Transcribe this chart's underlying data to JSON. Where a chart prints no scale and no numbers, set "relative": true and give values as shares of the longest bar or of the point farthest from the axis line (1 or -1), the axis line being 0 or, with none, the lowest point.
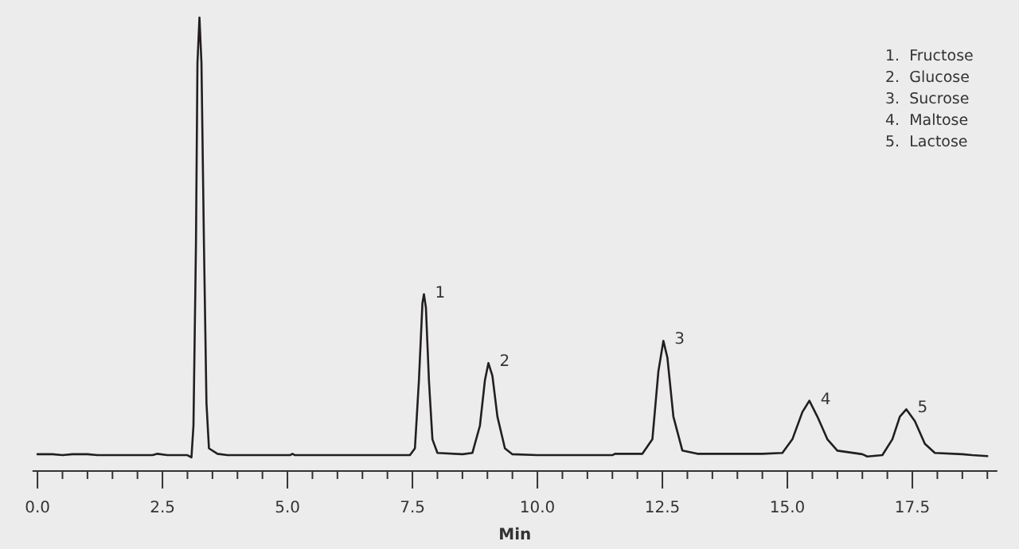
{
  "chart_data": {
    "type": "line",
    "relative": true,
    "xlabel": "Min",
    "xlim": [
      -0.1,
      19.2
    ],
    "xticks": [
      {
        "value": 0,
        "label": "0.0"
      },
      {
        "value": 0.5,
        "label": null
      },
      {
        "value": 1,
        "label": null
      },
      {
        "value": 1.5,
        "label": null
      },
      {
        "value": 2,
        "label": null
      },
      {
        "value": 2.5,
        "label": "2.5"
      },
      {
        "value": 3,
        "label": null
      },
      {
        "value": 3.5,
        "label": null
      },
      {
        "value": 4,
        "label": null
      },
      {
        "value": 4.5,
        "label": null
      },
      {
        "value": 5,
        "label": "5.0"
      },
      {
        "value": 5.5,
        "label": null
      },
      {
        "value": 6,
        "label": null
      },
      {
        "value": 6.5,
        "label": null
      },
      {
        "value": 7,
        "label": null
      },
      {
        "value": 7.5,
        "label": "7.5"
      },
      {
        "value": 8,
        "label": null
      },
      {
        "value": 8.5,
        "label": null
      },
      {
        "value": 9,
        "label": null
      },
      {
        "value": 9.5,
        "label": null
      },
      {
        "value": 10,
        "label": "10.0"
      },
      {
        "value": 10.5,
        "label": null
      },
      {
        "value": 11,
        "label": null
      },
      {
        "value": 11.5,
        "label": null
      },
      {
        "value": 12,
        "label": null
      },
      {
        "value": 12.5,
        "label": "12.5"
      },
      {
        "value": 13,
        "label": null
      },
      {
        "value": 13.5,
        "label": null
      },
      {
        "value": 14,
        "label": null
      },
      {
        "value": 14.5,
        "label": null
      },
      {
        "value": 15,
        "label": "15.0"
      },
      {
        "value": 15.5,
        "label": null
      },
      {
        "value": 16,
        "label": null
      },
      {
        "value": 16.5,
        "label": null
      },
      {
        "value": 17,
        "label": null
      },
      {
        "value": 17.5,
        "label": "17.5"
      },
      {
        "value": 18,
        "label": null
      },
      {
        "value": 18.5,
        "label": null
      },
      {
        "value": 19,
        "label": null
      }
    ],
    "series": [
      {
        "color": "#231f20",
        "x": [
          0,
          0.3,
          0.5,
          0.7,
          1.0,
          1.2,
          2.3,
          2.4,
          2.6,
          3.0,
          3.08,
          3.12,
          3.17,
          3.2,
          3.24,
          3.28,
          3.33,
          3.38,
          3.43,
          3.6,
          3.8,
          5.05,
          5.1,
          5.15,
          7.45,
          7.55,
          7.63,
          7.7,
          7.73,
          7.77,
          7.83,
          7.9,
          8.0,
          8.5,
          8.7,
          8.85,
          8.95,
          9.02,
          9.1,
          9.2,
          9.35,
          9.5,
          10.0,
          11.5,
          11.55,
          12.1,
          12.3,
          12.42,
          12.52,
          12.6,
          12.72,
          12.9,
          13.2,
          14.5,
          14.9,
          15.1,
          15.3,
          15.44,
          15.6,
          15.8,
          16.0,
          16.5,
          16.6,
          16.9,
          17.1,
          17.25,
          17.38,
          17.55,
          17.75,
          17.95,
          18.5,
          18.7,
          19.0
        ],
        "values": [
          0.037,
          0.037,
          0.035,
          0.037,
          0.037,
          0.035,
          0.035,
          0.038,
          0.035,
          0.035,
          0.03,
          0.1,
          0.5,
          0.9,
          1.0,
          0.9,
          0.5,
          0.15,
          0.05,
          0.038,
          0.035,
          0.035,
          0.038,
          0.035,
          0.035,
          0.05,
          0.2,
          0.37,
          0.39,
          0.36,
          0.2,
          0.07,
          0.04,
          0.037,
          0.04,
          0.1,
          0.2,
          0.238,
          0.21,
          0.12,
          0.05,
          0.037,
          0.035,
          0.035,
          0.038,
          0.038,
          0.07,
          0.22,
          0.287,
          0.25,
          0.12,
          0.045,
          0.038,
          0.038,
          0.04,
          0.07,
          0.13,
          0.155,
          0.12,
          0.07,
          0.045,
          0.037,
          0.032,
          0.035,
          0.07,
          0.12,
          0.136,
          0.11,
          0.06,
          0.04,
          0.037,
          0.035,
          0.033
        ]
      }
    ],
    "annotations": [
      {
        "text": "1",
        "x": 7.73,
        "y": 0.39
      },
      {
        "text": "2",
        "x": 9.02,
        "y": 0.238
      },
      {
        "text": "3",
        "x": 12.52,
        "y": 0.287
      },
      {
        "text": "4",
        "x": 15.44,
        "y": 0.155
      },
      {
        "text": "5",
        "x": 17.38,
        "y": 0.136
      },
      "1.  Fructose",
      "2.  Glucose",
      "3.  Sucrose",
      "4.  Maltose",
      "5.  Lactose"
    ]
  }
}
